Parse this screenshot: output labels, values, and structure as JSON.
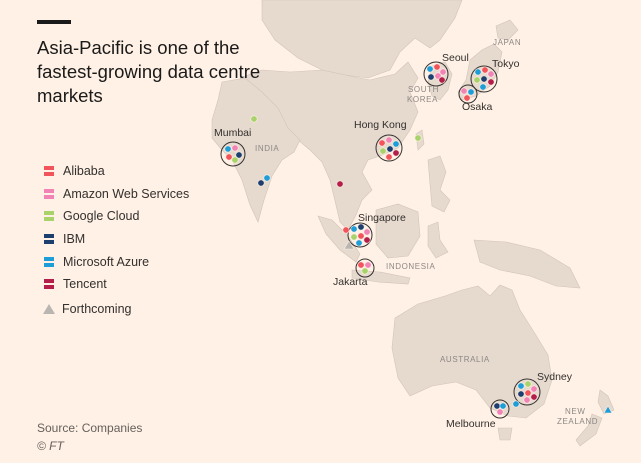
{
  "title": "Asia-Pacific is one of the fastest-growing data centre markets",
  "legend": [
    {
      "label": "Alibaba",
      "color": "#f2545b"
    },
    {
      "label": "Amazon Web Services",
      "color": "#f283b6"
    },
    {
      "label": "Google Cloud",
      "color": "#a8d36b"
    },
    {
      "label": "IBM",
      "color": "#1c3f70"
    },
    {
      "label": "Microsoft Azure",
      "color": "#1d9ed8"
    },
    {
      "label": "Tencent",
      "color": "#b31e4b"
    }
  ],
  "forthcoming_label": "Forthcoming",
  "source": "Source: Companies",
  "credit": "© FT",
  "countries": [
    "JAPAN",
    "SOUTH",
    "KOREA",
    "INDIA",
    "INDONESIA",
    "AUSTRALIA",
    "NEW",
    "ZEALAND"
  ],
  "cities": [
    "Seoul",
    "Tokyo",
    "Osaka",
    "Mumbai",
    "Hong Kong",
    "Singapore",
    "Jakarta",
    "Sydney",
    "Melbourne"
  ]
}
